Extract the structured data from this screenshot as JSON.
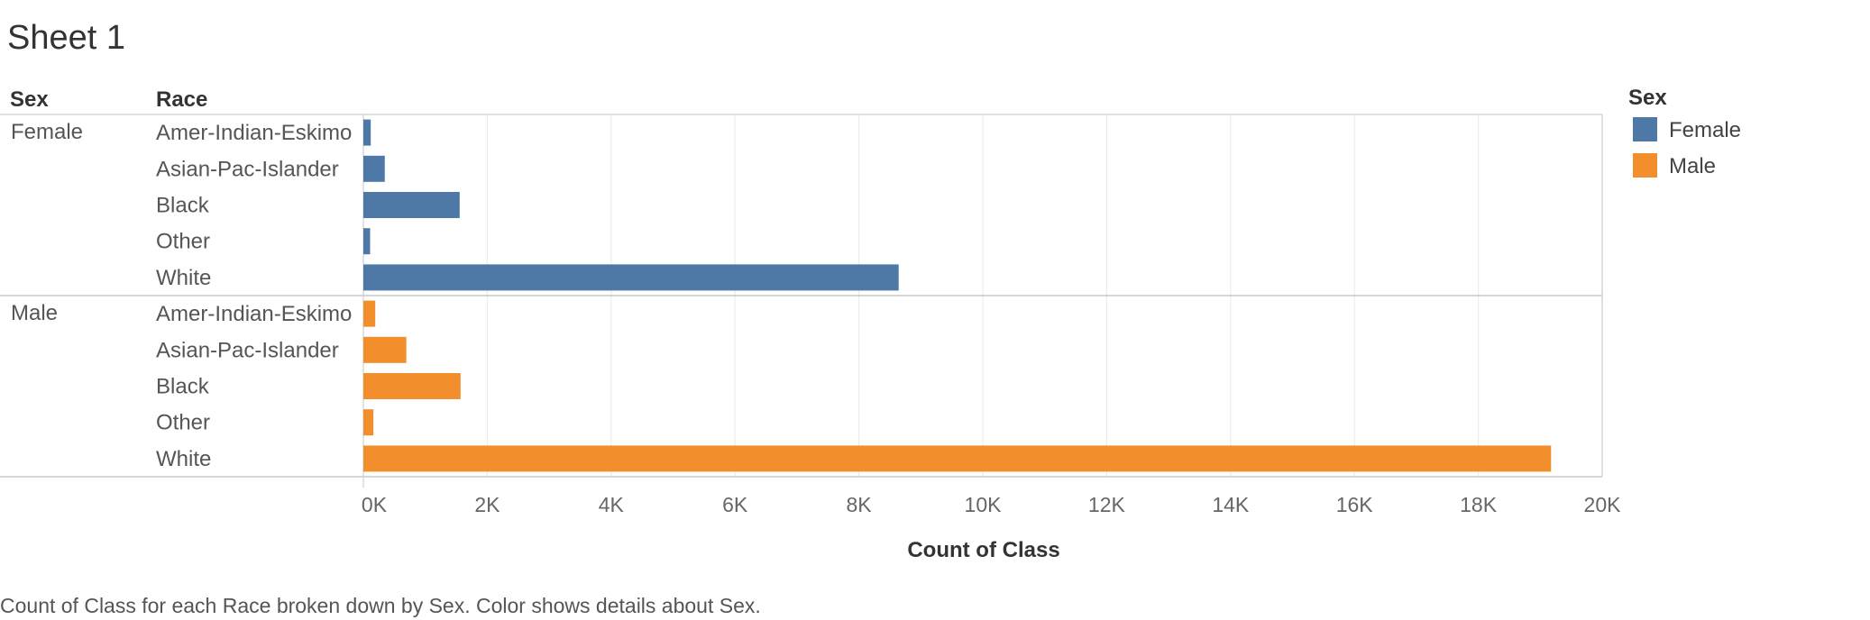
{
  "sheet": {
    "title": "Sheet 1",
    "caption": "Count of Class for each Race broken down by Sex.  Color shows details about Sex."
  },
  "headers": {
    "sex": "Sex",
    "race": "Race"
  },
  "legend": {
    "title": "Sex",
    "items": [
      {
        "label": "Female",
        "color": "#4e79a7"
      },
      {
        "label": "Male",
        "color": "#f28e2b"
      }
    ]
  },
  "chart_data": {
    "type": "bar",
    "orientation": "horizontal",
    "xlabel": "Count of Class",
    "xlim": [
      0,
      20000
    ],
    "xticks": [
      "0K",
      "2K",
      "4K",
      "6K",
      "8K",
      "10K",
      "12K",
      "14K",
      "16K",
      "18K",
      "20K"
    ],
    "grid": true,
    "legend_position": "top-right",
    "groups": [
      {
        "name": "Female",
        "color": "#4e79a7",
        "categories": [
          "Amer-Indian-Eskimo",
          "Asian-Pac-Islander",
          "Black",
          "Other",
          "White"
        ],
        "values": [
          119,
          346,
          1555,
          109,
          8642
        ]
      },
      {
        "name": "Male",
        "color": "#f28e2b",
        "categories": [
          "Amer-Indian-Eskimo",
          "Asian-Pac-Islander",
          "Black",
          "Other",
          "White"
        ],
        "values": [
          192,
          693,
          1569,
          162,
          19174
        ]
      }
    ]
  }
}
